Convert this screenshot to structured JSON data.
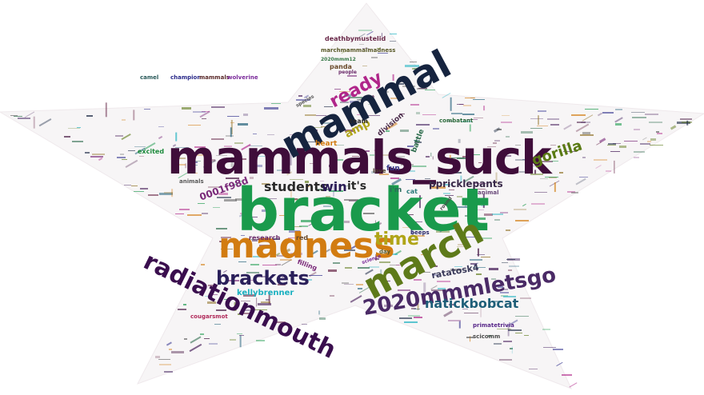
{
  "words": [
    {
      "text": "bracket",
      "color": "#1a9a4c"
    },
    {
      "text": "mammals_suck",
      "color": "#3f0d3a"
    },
    {
      "text": "mammal",
      "color": "#16243f"
    },
    {
      "text": "march",
      "color": "#5e7a1a"
    },
    {
      "text": "madness",
      "color": "#d27c11"
    },
    {
      "text": "radiationmouth",
      "color": "#3a0e4e"
    },
    {
      "text": "2020mmmletsgo",
      "color": "#4a2a66"
    },
    {
      "text": "brackets",
      "color": "#2a1f5a"
    },
    {
      "text": "time",
      "color": "#b0a518"
    },
    {
      "text": "ready",
      "color": "#b0268a"
    },
    {
      "text": "natickbobcat",
      "color": "#1e5e78"
    },
    {
      "text": "gorilla",
      "color": "#5a7a14"
    },
    {
      "text": "students",
      "color": "#2a2a2a"
    },
    {
      "text": "win",
      "color": "#2a1a55"
    },
    {
      "text": "it's",
      "color": "#2a2a2a"
    },
    {
      "text": "amp",
      "color": "#b0a51a"
    },
    {
      "text": "0001f98d",
      "color": "#7a2a7a"
    },
    {
      "text": "ppricklepants",
      "color": "#3a2a4a"
    },
    {
      "text": "ratatosk4",
      "color": "#3a3a5a"
    },
    {
      "text": "kellybrenner",
      "color": "#1ab0c0"
    },
    {
      "text": "deathbymustelid",
      "color": "#6a2a4a"
    },
    {
      "text": "marchmammalmadness",
      "color": "#5a5a2a"
    },
    {
      "text": "panda",
      "color": "#6a4a2a"
    },
    {
      "text": "champion",
      "color": "#2a2a8a"
    },
    {
      "text": "mammals",
      "color": "#5a2a2a"
    },
    {
      "text": "wolverine",
      "color": "#7a2a9a"
    },
    {
      "text": "camel",
      "color": "#2a5a5a"
    },
    {
      "text": "team",
      "color": "#2a2a2a"
    },
    {
      "text": "division",
      "color": "#4a2a4a"
    },
    {
      "text": "heart",
      "color": "#d27c11"
    },
    {
      "text": "battle",
      "color": "#2a6a4a"
    },
    {
      "text": "fun",
      "color": "#3a3a8a"
    },
    {
      "text": "i'm",
      "color": "#2a6a5a"
    },
    {
      "text": "excited",
      "color": "#1a8a3a"
    },
    {
      "text": "animals",
      "color": "#5a5a5a"
    },
    {
      "text": "research",
      "color": "#6a2a6a"
    },
    {
      "text": "red",
      "color": "#6a4a2a"
    },
    {
      "text": "day",
      "color": "#5a5a2a"
    },
    {
      "text": "beeps",
      "color": "#2a2a6a"
    },
    {
      "text": "filling",
      "color": "#7a2a7a"
    },
    {
      "text": "animal",
      "color": "#6a4a7a"
    },
    {
      "text": "primatetrivia",
      "color": "#5a2a8a"
    },
    {
      "text": "scicomm",
      "color": "#4a4a4a"
    },
    {
      "text": "cougarsmot",
      "color": "#b02a5a"
    },
    {
      "text": "combatant",
      "color": "#2a6a3a"
    },
    {
      "text": "people",
      "color": "#6a2a6a"
    },
    {
      "text": "love",
      "color": "#4a3a2a"
    },
    {
      "text": "cat",
      "color": "#2a7a7a"
    },
    {
      "text": "2020mmm12",
      "color": "#3a7a4a"
    },
    {
      "text": "species",
      "color": "#5a5a5a"
    },
    {
      "text": "round",
      "color": "#4a4a4a"
    },
    {
      "text": "science",
      "color": "#7a2a9a"
    }
  ],
  "palette": [
    "#1a9a4c",
    "#3f0d3a",
    "#16243f",
    "#5e7a1a",
    "#d27c11",
    "#3a0e4e",
    "#4a2a66",
    "#b0268a",
    "#1e5e78",
    "#7a2a7a",
    "#1ab0c0",
    "#6a2a4a",
    "#2a6a4a",
    "#5a5a5a",
    "#8a6a1a",
    "#2a2a8a"
  ]
}
